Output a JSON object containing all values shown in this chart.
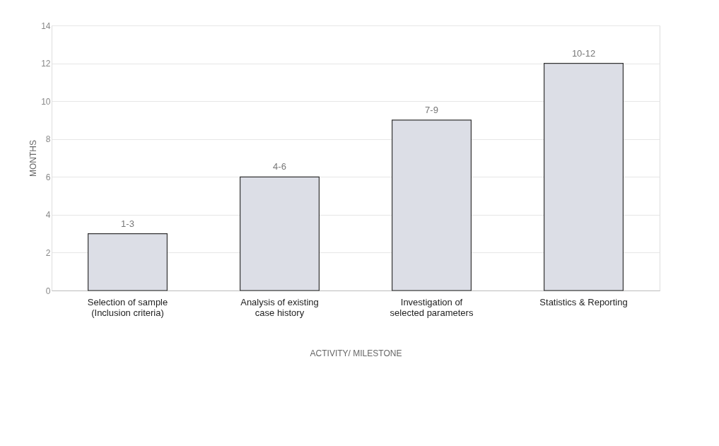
{
  "chart_data": {
    "type": "bar",
    "categories": [
      "Selection of sample\n(Inclusion criteria)",
      "Analysis of existing\ncase history",
      "Investigation of\nselected parameters",
      "Statistics & Reporting"
    ],
    "values": [
      3,
      6,
      9,
      12
    ],
    "value_labels": [
      "1-3",
      "4-6",
      "7-9",
      "10-12"
    ],
    "color": "#dcdee6",
    "xlabel": "ACTIVITY/ MILESTONE",
    "ylabel": "MONTHS",
    "ylim": [
      0,
      14
    ],
    "yticks": [
      0,
      2,
      4,
      6,
      8,
      10,
      12,
      14
    ],
    "grid": "y"
  }
}
